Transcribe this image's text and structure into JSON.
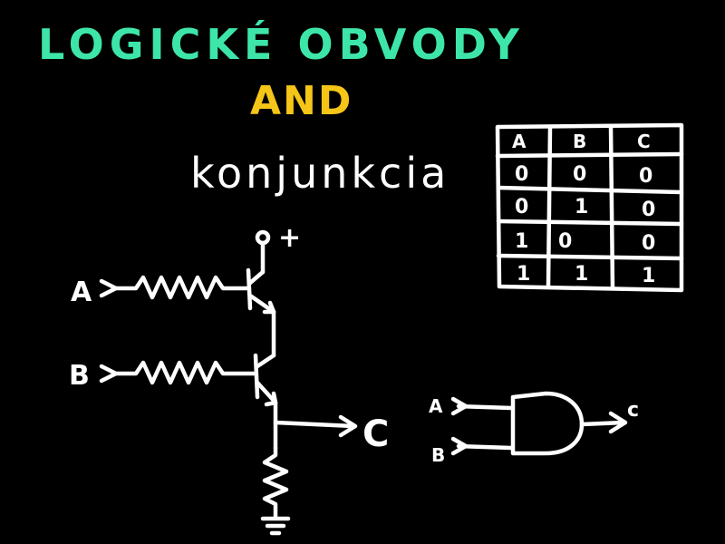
{
  "title": "LOGICKÉ OBVODY",
  "subtitle": "AND",
  "conjunction_label": "konjunkcia",
  "colors": {
    "title": "#3de6a8",
    "subtitle": "#f5c518",
    "ink": "#ffffff",
    "background": "#000000"
  },
  "circuit": {
    "input_a": "A",
    "input_b": "B",
    "output": "C",
    "supply": "+"
  },
  "gate": {
    "input_a": "A",
    "input_b": "B",
    "output": "c"
  },
  "truth_table": {
    "headers": [
      "A",
      "B",
      "C"
    ],
    "rows": [
      [
        "0",
        "0",
        "0"
      ],
      [
        "0",
        "1",
        "0"
      ],
      [
        "1",
        "0",
        "0"
      ],
      [
        "1",
        "1",
        "1"
      ]
    ]
  }
}
